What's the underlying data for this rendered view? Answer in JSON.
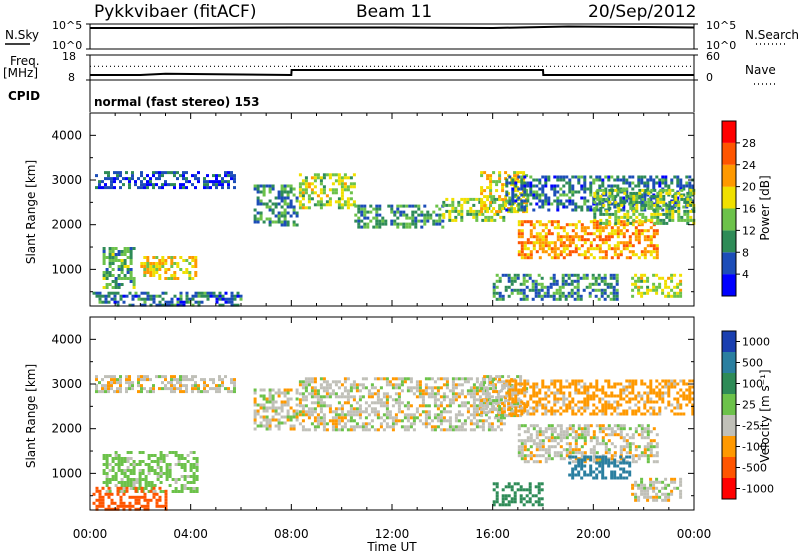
{
  "header": {
    "station": "Pykkvibaer (fitACF)",
    "beam": "Beam 11",
    "date": "20/Sep/2012"
  },
  "strips": {
    "nsky_label": "N.Sky",
    "nsky_ticks": [
      "10^5",
      "10^0"
    ],
    "nsearch_label": "N.Search",
    "nsearch_ticks": [
      "10^5",
      "10^0"
    ],
    "freq_label_1": "Freq.",
    "freq_label_2": "[MHz]",
    "freq_ticks": [
      "18",
      "8"
    ],
    "nave_label": "Nave",
    "nave_ticks": [
      "60",
      "0"
    ],
    "cpid_label": "CPID",
    "cpid_text": "normal (fast stereo) 153"
  },
  "axes": {
    "xlabel": "Time UT",
    "x_ticks": [
      "00:00",
      "04:00",
      "08:00",
      "12:00",
      "16:00",
      "20:00",
      "00:00"
    ],
    "ylabel": "Slant Range [km]",
    "y_ticks": [
      "4000",
      "3000",
      "2000",
      "1000"
    ]
  },
  "colorbars": {
    "power": {
      "label": "Power [dB]",
      "ticks": [
        "28",
        "24",
        "20",
        "16",
        "12",
        "8",
        "4"
      ],
      "colors": [
        "#0000ff",
        "#1c4db8",
        "#2e8b57",
        "#6cc24a",
        "#f0e000",
        "#ff9900",
        "#ff5500",
        "#ff0000"
      ]
    },
    "velocity": {
      "label": "Velocity [m s⁻¹]",
      "ticks": [
        "1000",
        "500",
        "100",
        "25",
        "-25",
        "-100",
        "-500",
        "-1000"
      ],
      "colors": [
        "#1a3fb0",
        "#2a7fa0",
        "#2e8b57",
        "#6cc24a",
        "#c0c0b8",
        "#ff9900",
        "#ff5500",
        "#ff0000"
      ]
    }
  },
  "chart_data": [
    {
      "type": "line",
      "name": "n-sky-n-search",
      "x": [
        0,
        0.3,
        4,
        8,
        12,
        16,
        19,
        22,
        24
      ],
      "y_log10": [
        4.2,
        4.2,
        4.2,
        4.3,
        4.3,
        4.2,
        4.5,
        4.4,
        4.3
      ],
      "ylim_log10": [
        0,
        5
      ]
    },
    {
      "type": "line",
      "name": "frequency",
      "x": [
        0,
        2,
        3,
        8,
        8.01,
        18,
        18.01,
        24
      ],
      "y": [
        10,
        10,
        10.5,
        10,
        12,
        12,
        10,
        10
      ],
      "ylim": [
        8,
        18
      ]
    },
    {
      "type": "line",
      "name": "nave",
      "x": [
        0,
        24
      ],
      "y": [
        33,
        33
      ],
      "ylim": [
        0,
        60
      ]
    },
    {
      "type": "heatmap",
      "name": "power",
      "xlim": [
        0,
        24
      ],
      "ylim": [
        180,
        4500
      ],
      "blobs": [
        {
          "x": [
            0.2,
            5.8
          ],
          "y": [
            2850,
            3200
          ],
          "value": 6
        },
        {
          "x": [
            2.0,
            4.2
          ],
          "y": [
            800,
            1300
          ],
          "value": 18
        },
        {
          "x": [
            0.5,
            1.8
          ],
          "y": [
            600,
            1500
          ],
          "value": 12
        },
        {
          "x": [
            0.1,
            6.0
          ],
          "y": [
            200,
            500
          ],
          "value": 8
        },
        {
          "x": [
            6.5,
            8.2
          ],
          "y": [
            2000,
            2900
          ],
          "value": 10
        },
        {
          "x": [
            8.3,
            10.5
          ],
          "y": [
            2400,
            3150
          ],
          "value": 16
        },
        {
          "x": [
            10.5,
            14.0
          ],
          "y": [
            1950,
            2450
          ],
          "value": 10
        },
        {
          "x": [
            14.0,
            16.5
          ],
          "y": [
            2100,
            2600
          ],
          "value": 14
        },
        {
          "x": [
            15.5,
            17.3
          ],
          "y": [
            2300,
            3200
          ],
          "value": 18
        },
        {
          "x": [
            16.5,
            24.0
          ],
          "y": [
            2300,
            3100
          ],
          "value": 8
        },
        {
          "x": [
            17.0,
            22.5
          ],
          "y": [
            1250,
            2100
          ],
          "value": 22
        },
        {
          "x": [
            20.0,
            24.0
          ],
          "y": [
            2000,
            2800
          ],
          "value": 14
        },
        {
          "x": [
            16.0,
            21.0
          ],
          "y": [
            300,
            900
          ],
          "value": 10
        },
        {
          "x": [
            21.5,
            23.5
          ],
          "y": [
            400,
            900
          ],
          "value": 16
        }
      ]
    },
    {
      "type": "heatmap",
      "name": "velocity",
      "xlim": [
        0,
        24
      ],
      "ylim": [
        180,
        4500
      ],
      "blobs": [
        {
          "x": [
            0.2,
            5.8
          ],
          "y": [
            2850,
            3200
          ],
          "value": 0
        },
        {
          "x": [
            0.5,
            4.2
          ],
          "y": [
            600,
            1500
          ],
          "value": 50
        },
        {
          "x": [
            0.1,
            3.0
          ],
          "y": [
            200,
            700
          ],
          "value": -300
        },
        {
          "x": [
            6.5,
            8.2
          ],
          "y": [
            2000,
            2900
          ],
          "value": 0
        },
        {
          "x": [
            8.3,
            16.5
          ],
          "y": [
            2000,
            3150
          ],
          "value": 0
        },
        {
          "x": [
            15.5,
            17.3
          ],
          "y": [
            2300,
            3200
          ],
          "value": 0
        },
        {
          "x": [
            16.5,
            24.0
          ],
          "y": [
            2300,
            3100
          ],
          "value": -50
        },
        {
          "x": [
            17.0,
            22.5
          ],
          "y": [
            1250,
            2100
          ],
          "value": 0
        },
        {
          "x": [
            16.0,
            18.0
          ],
          "y": [
            300,
            800
          ],
          "value": 150
        },
        {
          "x": [
            19.0,
            21.5
          ],
          "y": [
            900,
            1400
          ],
          "value": 600
        },
        {
          "x": [
            21.5,
            23.5
          ],
          "y": [
            400,
            900
          ],
          "value": 0
        }
      ]
    }
  ]
}
